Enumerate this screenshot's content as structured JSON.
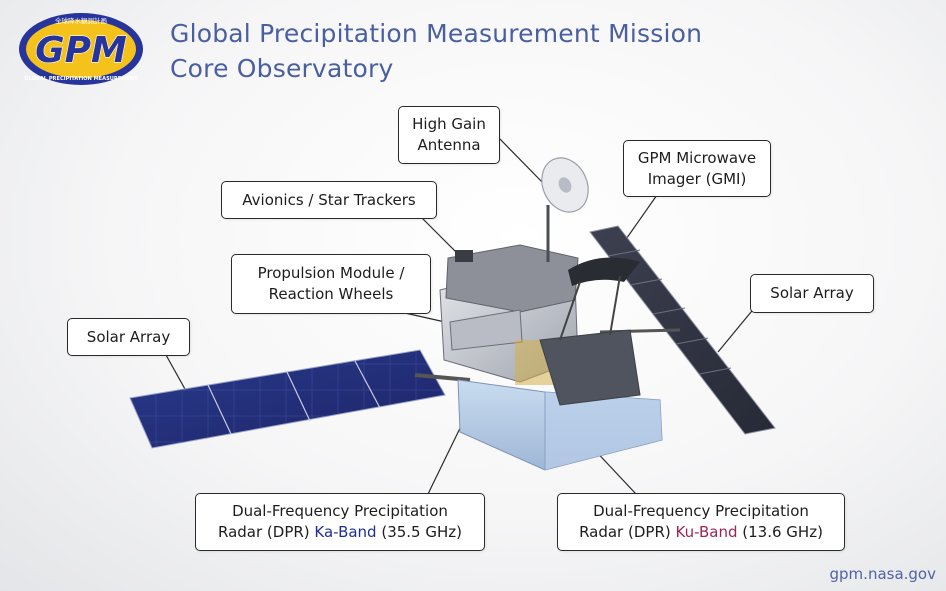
{
  "logo": {
    "text": "GPM",
    "arc_top": "全球降水観測計画",
    "arc_bottom": "GLOBAL PRECIPITATION MEASUREMENT"
  },
  "title": {
    "line1": "Global Precipitation Measurement Mission",
    "line2": "Core Observatory"
  },
  "callouts": {
    "high_gain_antenna": {
      "line1": "High Gain",
      "line2": "Antenna"
    },
    "gmi": {
      "line1": "GPM Microwave",
      "line2": "Imager (GMI)"
    },
    "avionics": {
      "line1": "Avionics / Star Trackers"
    },
    "propulsion": {
      "line1": "Propulsion Module /",
      "line2": "Reaction Wheels"
    },
    "solar_left": {
      "line1": "Solar Array"
    },
    "solar_right": {
      "line1": "Solar Array"
    },
    "dpr_ka": {
      "line1": "Dual-Frequency Precipitation",
      "line2_prefix": "Radar (DPR) ",
      "line2_band": "Ka-Band",
      "line2_suffix": " (35.5 GHz)"
    },
    "dpr_ku": {
      "line1": "Dual-Frequency Precipitation",
      "line2_prefix": "Radar (DPR) ",
      "line2_band": "Ku-Band",
      "line2_suffix": " (13.6 GHz)"
    }
  },
  "footer": {
    "url": "gpm.nasa.gov"
  },
  "colors": {
    "title": "#4a5fa0",
    "ka_band": "#1f2e97",
    "ku_band": "#9b2557",
    "logo_blue": "#27349b",
    "logo_gold": "#f4c21b"
  }
}
